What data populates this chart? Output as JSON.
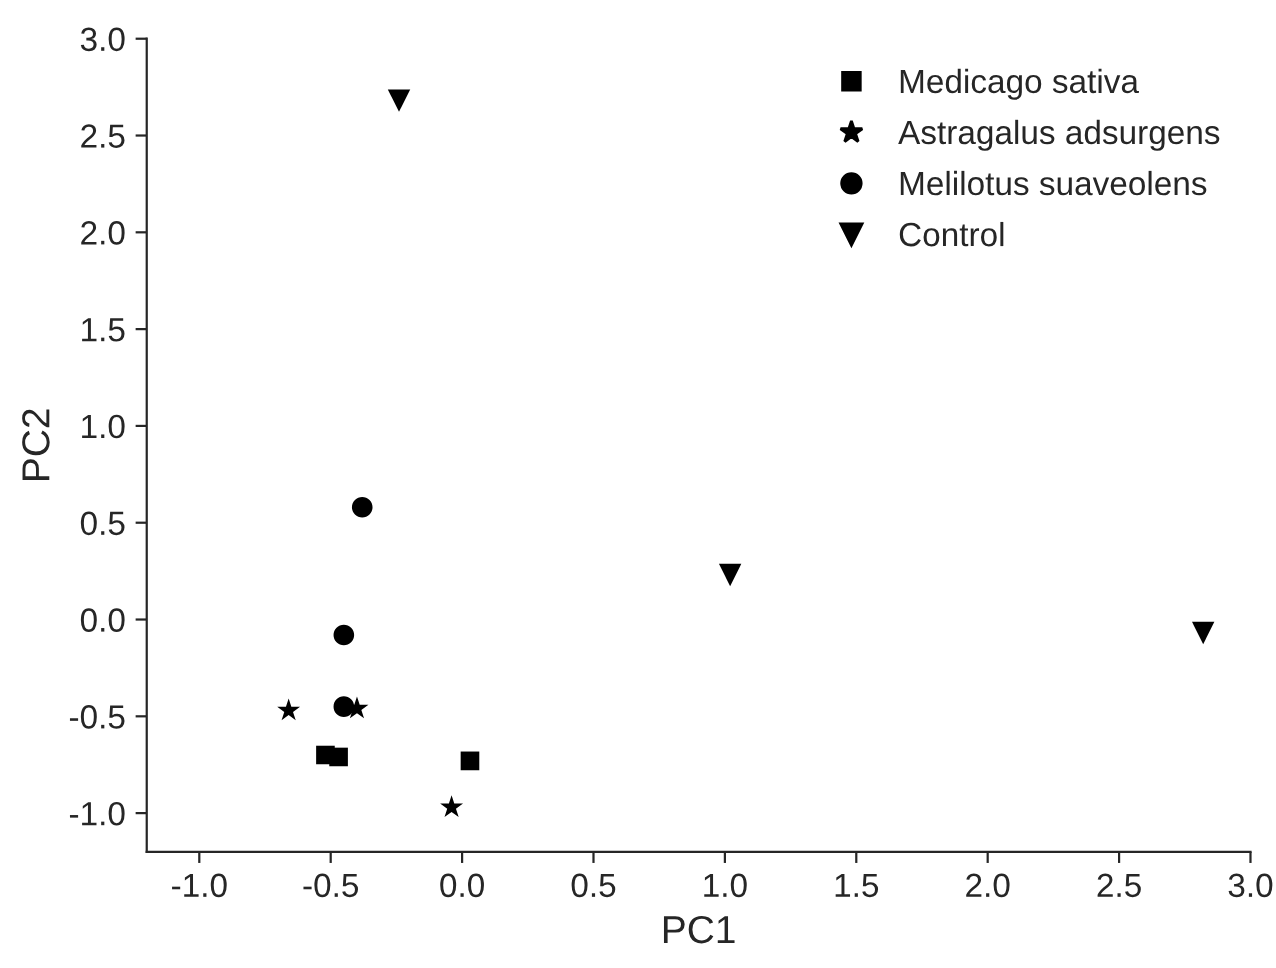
{
  "chart_data": {
    "type": "scatter",
    "xlabel": "PC1",
    "ylabel": "PC2",
    "xlim": [
      -1.2,
      3.0
    ],
    "ylim": [
      -1.2,
      3.0
    ],
    "xticks": [
      {
        "value": -1.0,
        "label": "-1.0"
      },
      {
        "value": -0.5,
        "label": "-0.5"
      },
      {
        "value": 0.0,
        "label": "0.0"
      },
      {
        "value": 0.5,
        "label": "0.5"
      },
      {
        "value": 1.0,
        "label": "1.0"
      },
      {
        "value": 1.5,
        "label": "1.5"
      },
      {
        "value": 2.0,
        "label": "2.0"
      },
      {
        "value": 2.5,
        "label": "2.5"
      },
      {
        "value": 3.0,
        "label": "3.0"
      }
    ],
    "yticks": [
      {
        "value": -1.0,
        "label": "-1.0"
      },
      {
        "value": -0.5,
        "label": "-0.5"
      },
      {
        "value": 0.0,
        "label": "0.0"
      },
      {
        "value": 0.5,
        "label": "0.5"
      },
      {
        "value": 1.0,
        "label": "1.0"
      },
      {
        "value": 1.5,
        "label": "1.5"
      },
      {
        "value": 2.0,
        "label": "2.0"
      },
      {
        "value": 2.5,
        "label": "2.5"
      },
      {
        "value": 3.0,
        "label": "3.0"
      }
    ],
    "grid": false,
    "legend": "top right",
    "series": [
      {
        "name": "Medicago sativa",
        "color": "#000000",
        "marker": "square",
        "x": [
          -0.52,
          -0.47,
          0.03
        ],
        "values": [
          -0.7,
          -0.71,
          -0.73
        ]
      },
      {
        "name": "Astragalus adsurgens",
        "color": "#000000",
        "marker": "star",
        "x": [
          -0.66,
          -0.4,
          -0.04
        ],
        "values": [
          -0.47,
          -0.46,
          -0.97
        ]
      },
      {
        "name": "Melilotus suaveolens",
        "color": "#000000",
        "marker": "circle",
        "x": [
          -0.38,
          -0.45,
          -0.45
        ],
        "values": [
          0.58,
          -0.08,
          -0.45
        ]
      },
      {
        "name": "Control",
        "color": "#000000",
        "marker": "triangle",
        "x": [
          -0.24,
          1.02,
          2.82
        ],
        "values": [
          2.68,
          0.23,
          -0.07
        ]
      }
    ]
  }
}
